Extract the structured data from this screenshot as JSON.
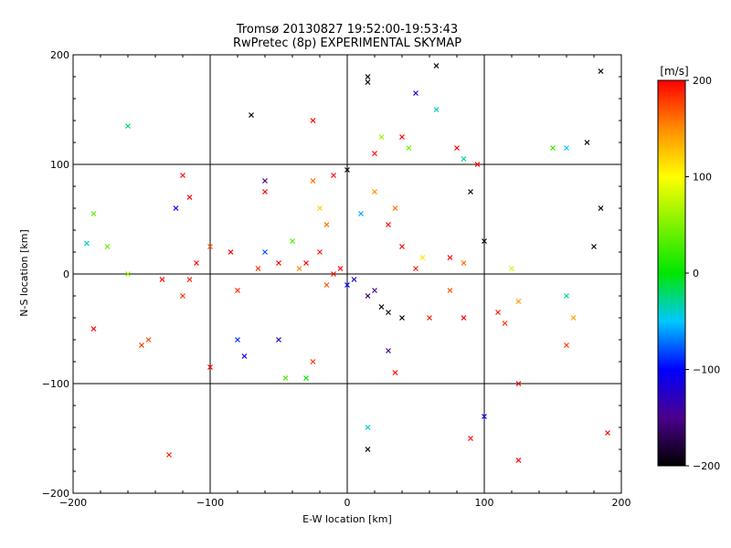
{
  "chart_data": [
    {
      "type": "scatter",
      "title": "Tromsø 20130827 19:52:00-19:53:43",
      "subtitle": "RwPretec (8p) EXPERIMENTAL SKYMAP",
      "xlabel": "E-W location [km]",
      "ylabel": "N-S location [km]",
      "xlim": [
        -200,
        200
      ],
      "ylim": [
        -200,
        200
      ],
      "xticks": [
        -200,
        -100,
        0,
        100,
        200
      ],
      "yticks": [
        -200,
        -100,
        0,
        100,
        200
      ],
      "grid": true,
      "marker_types": [
        "dot",
        "cross"
      ],
      "color_variable_range": [
        -200,
        200
      ],
      "series": [
        {
          "marker": "cross",
          "points": [
            [
              -100,
              -85,
              200
            ],
            [
              -120,
              -20,
              180
            ],
            [
              -145,
              -60,
              170
            ],
            [
              -150,
              -65,
              180
            ],
            [
              -130,
              -165,
              190
            ],
            [
              -185,
              -50,
              200
            ],
            [
              -160,
              0,
              60
            ],
            [
              -175,
              25,
              40
            ],
            [
              -190,
              28,
              -40
            ],
            [
              -185,
              55,
              40
            ],
            [
              -160,
              135,
              -20
            ],
            [
              -135,
              -5,
              200
            ],
            [
              -80,
              -15,
              190
            ],
            [
              -70,
              145,
              -200
            ],
            [
              -25,
              140,
              200
            ],
            [
              -20,
              60,
              120
            ],
            [
              -15,
              45,
              160
            ],
            [
              -75,
              -75,
              -110
            ],
            [
              -80,
              -60,
              -90
            ],
            [
              -50,
              -60,
              -120
            ],
            [
              -45,
              -95,
              30
            ],
            [
              -30,
              -95,
              0
            ],
            [
              -25,
              -80,
              180
            ],
            [
              -60,
              85,
              -150
            ],
            [
              -60,
              75,
              200
            ],
            [
              -25,
              85,
              160
            ],
            [
              -10,
              90,
              200
            ],
            [
              -20,
              20,
              190
            ],
            [
              -40,
              30,
              30
            ],
            [
              0,
              95,
              -200
            ],
            [
              20,
              110,
              200
            ],
            [
              25,
              125,
              60
            ],
            [
              40,
              125,
              200
            ],
            [
              45,
              115,
              40
            ],
            [
              50,
              165,
              -110
            ],
            [
              65,
              190,
              -200
            ],
            [
              65,
              150,
              -40
            ],
            [
              20,
              75,
              150
            ],
            [
              10,
              55,
              -60
            ],
            [
              30,
              45,
              200
            ],
            [
              35,
              60,
              160
            ],
            [
              40,
              25,
              200
            ],
            [
              50,
              5,
              190
            ],
            [
              55,
              15,
              110
            ],
            [
              75,
              15,
              200
            ],
            [
              85,
              10,
              160
            ],
            [
              75,
              -15,
              170
            ],
            [
              60,
              -40,
              190
            ],
            [
              85,
              -40,
              200
            ],
            [
              90,
              75,
              -200
            ],
            [
              100,
              30,
              -200
            ],
            [
              80,
              115,
              200
            ],
            [
              85,
              105,
              -30
            ],
            [
              95,
              100,
              200
            ],
            [
              120,
              5,
              80
            ],
            [
              125,
              -25,
              140
            ],
            [
              115,
              -45,
              180
            ],
            [
              125,
              -100,
              200
            ],
            [
              110,
              -35,
              190
            ],
            [
              150,
              115,
              20
            ],
            [
              160,
              115,
              -50
            ],
            [
              175,
              120,
              -200
            ],
            [
              180,
              25,
              -200
            ],
            [
              185,
              185,
              -200
            ],
            [
              185,
              60,
              -200
            ],
            [
              160,
              -20,
              -30
            ],
            [
              165,
              -40,
              140
            ],
            [
              160,
              -65,
              180
            ],
            [
              190,
              -145,
              200
            ],
            [
              125,
              -170,
              200
            ],
            [
              100,
              -130,
              -100
            ],
            [
              90,
              -150,
              200
            ],
            [
              15,
              -140,
              -40
            ],
            [
              15,
              -160,
              -200
            ],
            [
              15,
              175,
              -200
            ],
            [
              15,
              180,
              -200
            ],
            [
              30,
              -70,
              -150
            ],
            [
              35,
              -90,
              200
            ],
            [
              30,
              -35,
              -200
            ],
            [
              25,
              -30,
              -200
            ],
            [
              40,
              -40,
              -200
            ],
            [
              20,
              -15,
              -150
            ],
            [
              15,
              -20,
              -160
            ],
            [
              5,
              -5,
              -130
            ],
            [
              0,
              -10,
              -100
            ],
            [
              -5,
              5,
              200
            ],
            [
              -10,
              0,
              190
            ],
            [
              -15,
              -10,
              170
            ],
            [
              -30,
              10,
              200
            ],
            [
              -35,
              5,
              150
            ],
            [
              -50,
              10,
              200
            ],
            [
              -60,
              20,
              -80
            ],
            [
              -65,
              5,
              180
            ],
            [
              -85,
              20,
              200
            ],
            [
              -100,
              25,
              170
            ],
            [
              -110,
              10,
              200
            ],
            [
              -115,
              -5,
              190
            ],
            [
              -125,
              60,
              -100
            ],
            [
              -115,
              70,
              200
            ],
            [
              -120,
              90,
              200
            ]
          ]
        }
      ]
    },
    {
      "type": "colorbar",
      "title": "[m/s]",
      "ticks": [
        200,
        100,
        0,
        -100,
        -200
      ],
      "range": [
        -200,
        200
      ]
    }
  ]
}
